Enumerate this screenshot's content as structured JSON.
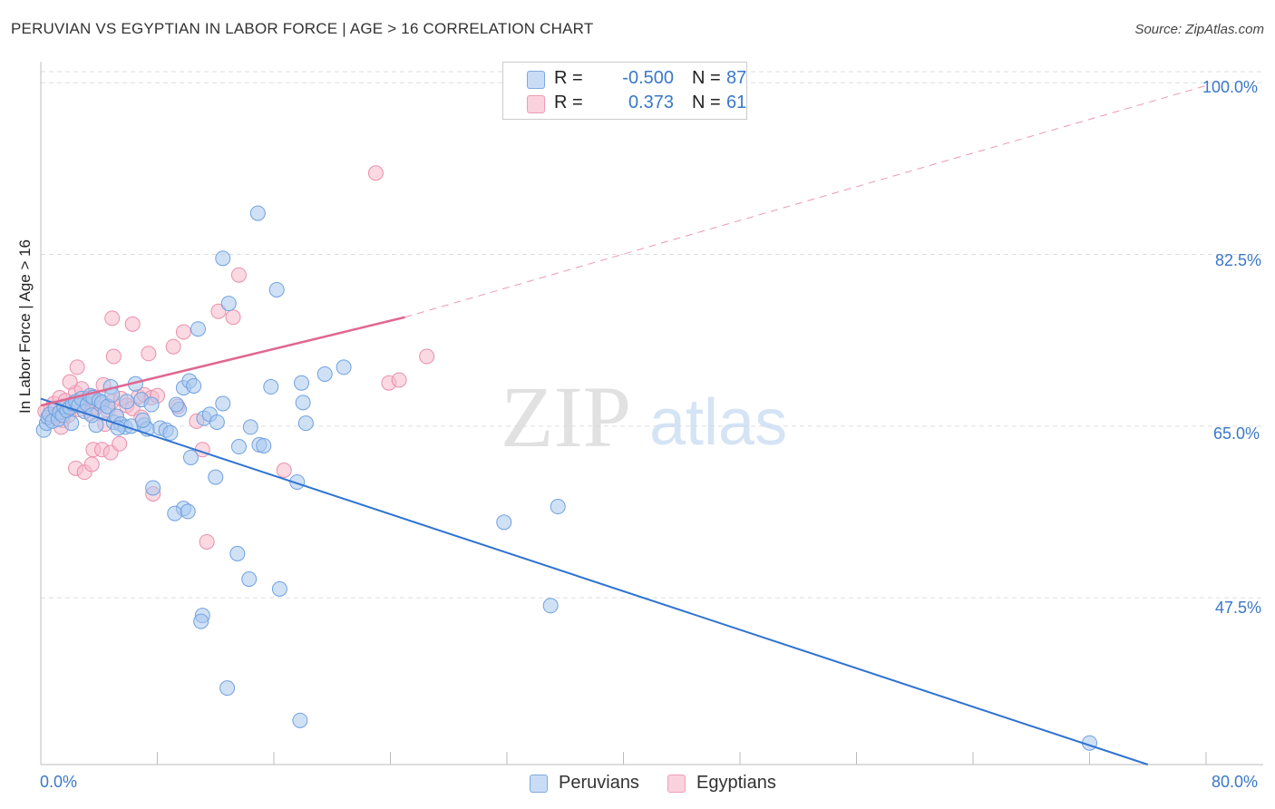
{
  "title": "PERUVIAN VS EGYPTIAN IN LABOR FORCE | AGE > 16 CORRELATION CHART",
  "source": "Source: ZipAtlas.com",
  "watermark": {
    "zip": "ZIP",
    "atlas": "atlas"
  },
  "legend": {
    "rows": [
      {
        "r_label": "R =",
        "r_value": "-0.500",
        "n_label": "N =",
        "n_value": "87",
        "color": "#a9c8ef"
      },
      {
        "r_label": "R =",
        "r_value": "0.373",
        "n_label": "N =",
        "n_value": "61",
        "color": "#f5b9cb"
      }
    ]
  },
  "bottom_legend": [
    {
      "label": "Peruvians",
      "color": "#a9c8ef"
    },
    {
      "label": "Egyptians",
      "color": "#f5b9cb"
    }
  ],
  "axes": {
    "x_min_label": "0.0%",
    "x_max_label": "80.0%",
    "y_ticks": [
      "100.0%",
      "82.5%",
      "65.0%",
      "47.5%"
    ],
    "y_label": "In Labor Force | Age > 16"
  },
  "chart_data": {
    "type": "scatter",
    "title": "PERUVIAN VS EGYPTIAN IN LABOR FORCE | AGE > 16 CORRELATION CHART",
    "xlabel": "",
    "ylabel": "In Labor Force | Age > 16",
    "xlim": [
      0,
      80
    ],
    "ylim": [
      30.5,
      101.5
    ],
    "y_gridlines": [
      47.5,
      65.0,
      82.5,
      100.0
    ],
    "series": [
      {
        "name": "Peruvians",
        "color": "#6fa1e0",
        "fill": "#a9c8ef",
        "r": -0.5,
        "n": 87,
        "points": [
          [
            0.2,
            64.6
          ],
          [
            0.4,
            65.3
          ],
          [
            0.5,
            65.9
          ],
          [
            0.6,
            66.2
          ],
          [
            0.8,
            65.5
          ],
          [
            1.0,
            66.8
          ],
          [
            1.2,
            65.7
          ],
          [
            1.3,
            66.4
          ],
          [
            1.5,
            66.1
          ],
          [
            1.6,
            67.0
          ],
          [
            1.8,
            66.6
          ],
          [
            2.0,
            66.9
          ],
          [
            2.2,
            67.3
          ],
          [
            2.4,
            67.5
          ],
          [
            2.6,
            67.1
          ],
          [
            2.8,
            67.8
          ],
          [
            3.0,
            66.5
          ],
          [
            3.2,
            67.2
          ],
          [
            3.4,
            68.1
          ],
          [
            3.6,
            67.9
          ],
          [
            3.8,
            65.1
          ],
          [
            4.0,
            67.6
          ],
          [
            4.2,
            67.4
          ],
          [
            4.4,
            66.3
          ],
          [
            4.6,
            67.0
          ],
          [
            5.0,
            65.4
          ],
          [
            5.2,
            66.0
          ],
          [
            5.5,
            65.2
          ],
          [
            5.8,
            64.9
          ],
          [
            6.2,
            65.0
          ],
          [
            4.8,
            69.0
          ],
          [
            4.9,
            68.2
          ],
          [
            5.3,
            64.8
          ],
          [
            6.5,
            69.3
          ],
          [
            6.9,
            67.7
          ],
          [
            7.1,
            65.1
          ],
          [
            7.3,
            64.7
          ],
          [
            7.6,
            67.2
          ],
          [
            8.2,
            64.8
          ],
          [
            8.6,
            64.6
          ],
          [
            8.9,
            64.3
          ],
          [
            9.5,
            66.7
          ],
          [
            9.8,
            68.9
          ],
          [
            10.2,
            69.6
          ],
          [
            10.5,
            69.1
          ],
          [
            10.8,
            74.9
          ],
          [
            11.2,
            65.8
          ],
          [
            11.6,
            66.2
          ],
          [
            12.1,
            65.4
          ],
          [
            12.5,
            67.3
          ],
          [
            12.9,
            77.5
          ],
          [
            13.6,
            62.9
          ],
          [
            14.4,
            64.9
          ],
          [
            15.0,
            63.1
          ],
          [
            15.3,
            63.0
          ],
          [
            15.8,
            69.0
          ],
          [
            16.2,
            78.9
          ],
          [
            17.9,
            69.4
          ],
          [
            18.0,
            67.4
          ],
          [
            18.2,
            65.3
          ],
          [
            19.5,
            70.3
          ],
          [
            20.8,
            71.0
          ],
          [
            12.5,
            82.1
          ],
          [
            14.9,
            86.7
          ],
          [
            7.7,
            58.7
          ],
          [
            9.8,
            56.6
          ],
          [
            9.2,
            56.1
          ],
          [
            10.1,
            56.3
          ],
          [
            12.0,
            59.8
          ],
          [
            17.6,
            59.3
          ],
          [
            13.5,
            52.0
          ],
          [
            14.3,
            49.4
          ],
          [
            16.4,
            48.4
          ],
          [
            11.1,
            45.7
          ],
          [
            11.0,
            45.1
          ],
          [
            12.8,
            38.3
          ],
          [
            17.8,
            35.0
          ],
          [
            31.8,
            55.2
          ],
          [
            35.5,
            56.8
          ],
          [
            35.0,
            46.7
          ],
          [
            10.3,
            61.8
          ],
          [
            7.0,
            65.6
          ],
          [
            5.9,
            67.5
          ],
          [
            3.5,
            66.1
          ],
          [
            2.1,
            65.3
          ],
          [
            9.3,
            67.2
          ],
          [
            72.0,
            32.7
          ]
        ],
        "trend": {
          "x0": 0,
          "y0": 67.8,
          "x1": 76,
          "y1": 30.5
        }
      },
      {
        "name": "Egyptians",
        "color": "#ea8fab",
        "fill": "#f5b9cb",
        "r": 0.373,
        "n": 61,
        "points": [
          [
            0.3,
            66.5
          ],
          [
            0.5,
            65.9
          ],
          [
            0.7,
            66.8
          ],
          [
            0.9,
            67.3
          ],
          [
            1.1,
            66.2
          ],
          [
            1.3,
            67.9
          ],
          [
            1.5,
            65.6
          ],
          [
            1.7,
            67.6
          ],
          [
            1.9,
            66.1
          ],
          [
            2.2,
            67.0
          ],
          [
            2.4,
            68.4
          ],
          [
            2.6,
            66.7
          ],
          [
            2.8,
            68.8
          ],
          [
            3.0,
            67.4
          ],
          [
            3.2,
            67.8
          ],
          [
            3.4,
            66.3
          ],
          [
            3.6,
            68.0
          ],
          [
            3.8,
            66.9
          ],
          [
            4.1,
            67.2
          ],
          [
            4.3,
            69.2
          ],
          [
            4.6,
            66.6
          ],
          [
            4.9,
            67.5
          ],
          [
            5.2,
            66.0
          ],
          [
            5.5,
            67.8
          ],
          [
            5.9,
            67.1
          ],
          [
            6.3,
            66.8
          ],
          [
            6.7,
            68.0
          ],
          [
            7.1,
            68.2
          ],
          [
            7.6,
            67.9
          ],
          [
            8.0,
            68.1
          ],
          [
            2.5,
            71.0
          ],
          [
            2.0,
            69.5
          ],
          [
            3.6,
            62.6
          ],
          [
            2.4,
            60.7
          ],
          [
            3.0,
            60.3
          ],
          [
            3.5,
            61.1
          ],
          [
            4.2,
            62.6
          ],
          [
            4.8,
            62.3
          ],
          [
            5.4,
            63.2
          ],
          [
            5.0,
            72.1
          ],
          [
            6.3,
            75.4
          ],
          [
            7.4,
            72.4
          ],
          [
            4.9,
            76.0
          ],
          [
            9.1,
            73.1
          ],
          [
            9.8,
            74.6
          ],
          [
            10.7,
            65.5
          ],
          [
            11.1,
            62.6
          ],
          [
            12.2,
            76.7
          ],
          [
            13.2,
            76.1
          ],
          [
            13.6,
            80.4
          ],
          [
            7.7,
            58.1
          ],
          [
            11.4,
            53.2
          ],
          [
            16.7,
            60.5
          ],
          [
            23.9,
            69.4
          ],
          [
            24.6,
            69.7
          ],
          [
            26.5,
            72.1
          ],
          [
            23.0,
            90.8
          ],
          [
            4.4,
            65.2
          ],
          [
            1.4,
            64.9
          ],
          [
            6.9,
            65.9
          ],
          [
            9.4,
            67.0
          ]
        ],
        "trend": {
          "x0": 0,
          "y0": 67.1,
          "x1": 25,
          "y1": 76.1
        },
        "trend_ext": {
          "x0": 25,
          "y0": 76.1,
          "x1": 80,
          "y1": 99.7
        }
      }
    ]
  }
}
